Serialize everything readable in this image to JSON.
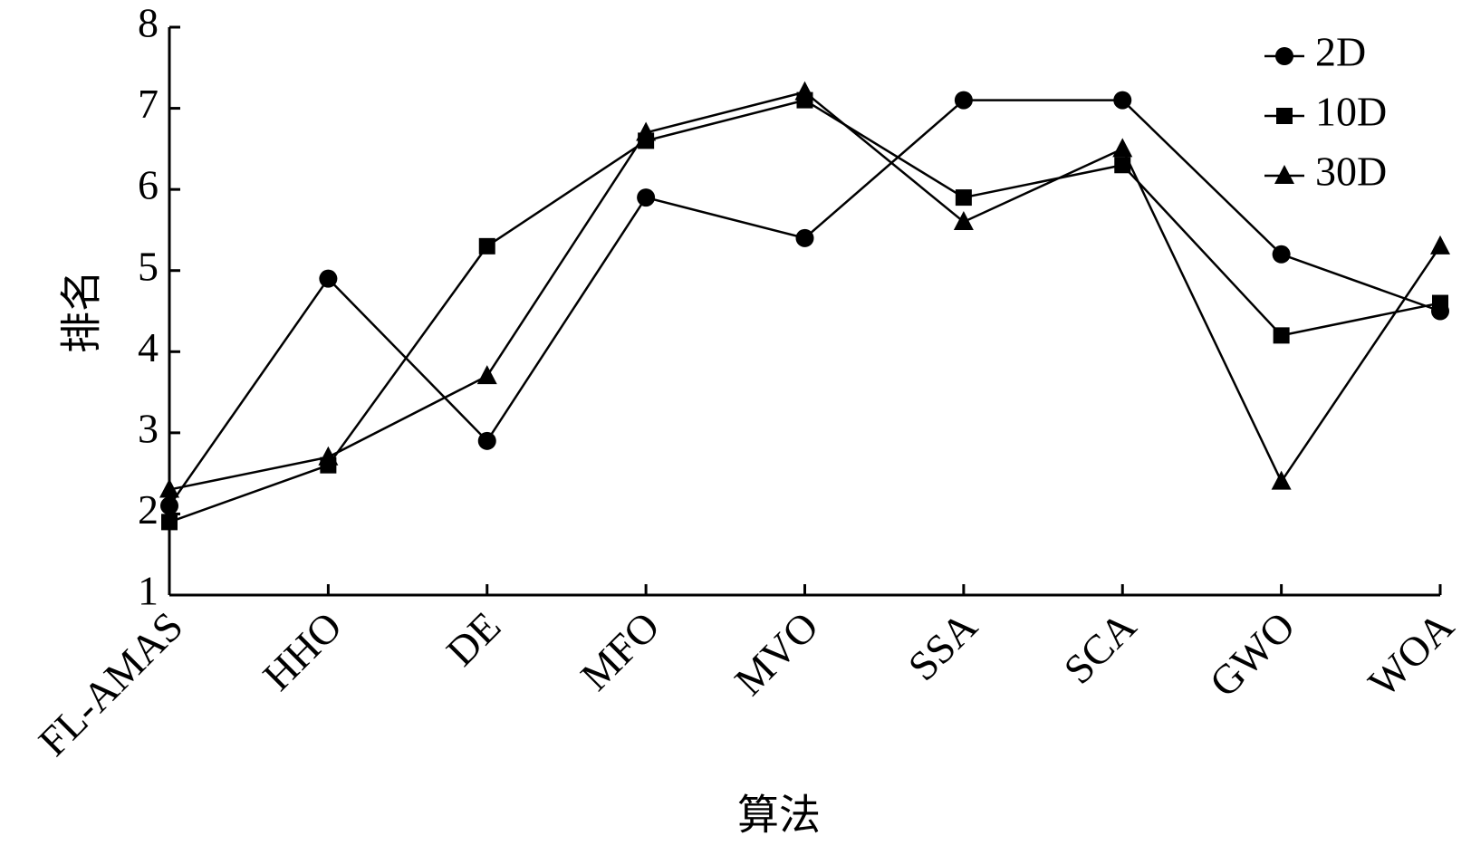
{
  "chart_data": {
    "type": "line",
    "xlabel": "算法",
    "ylabel": "排名",
    "categories": [
      "FL-AMAS",
      "HHO",
      "DE",
      "MFO",
      "MVO",
      "SSA",
      "SCA",
      "GWO",
      "WOA"
    ],
    "series": [
      {
        "name": "2D",
        "color": "#000000",
        "marker": "circle",
        "values": [
          2.1,
          4.9,
          2.9,
          5.9,
          5.4,
          7.1,
          7.1,
          5.2,
          4.5
        ]
      },
      {
        "name": "10D",
        "color": "#000000",
        "marker": "square",
        "values": [
          1.9,
          2.6,
          5.3,
          6.6,
          7.1,
          5.9,
          6.3,
          4.2,
          4.6
        ]
      },
      {
        "name": "30D",
        "color": "#000000",
        "marker": "triangle",
        "values": [
          2.3,
          2.7,
          3.7,
          6.7,
          7.2,
          5.6,
          6.5,
          2.4,
          5.3
        ]
      }
    ],
    "ylim": [
      1,
      8
    ],
    "yticks": [
      1,
      2,
      3,
      4,
      5,
      6,
      7,
      8
    ],
    "grid": false,
    "legend": "upper right"
  }
}
